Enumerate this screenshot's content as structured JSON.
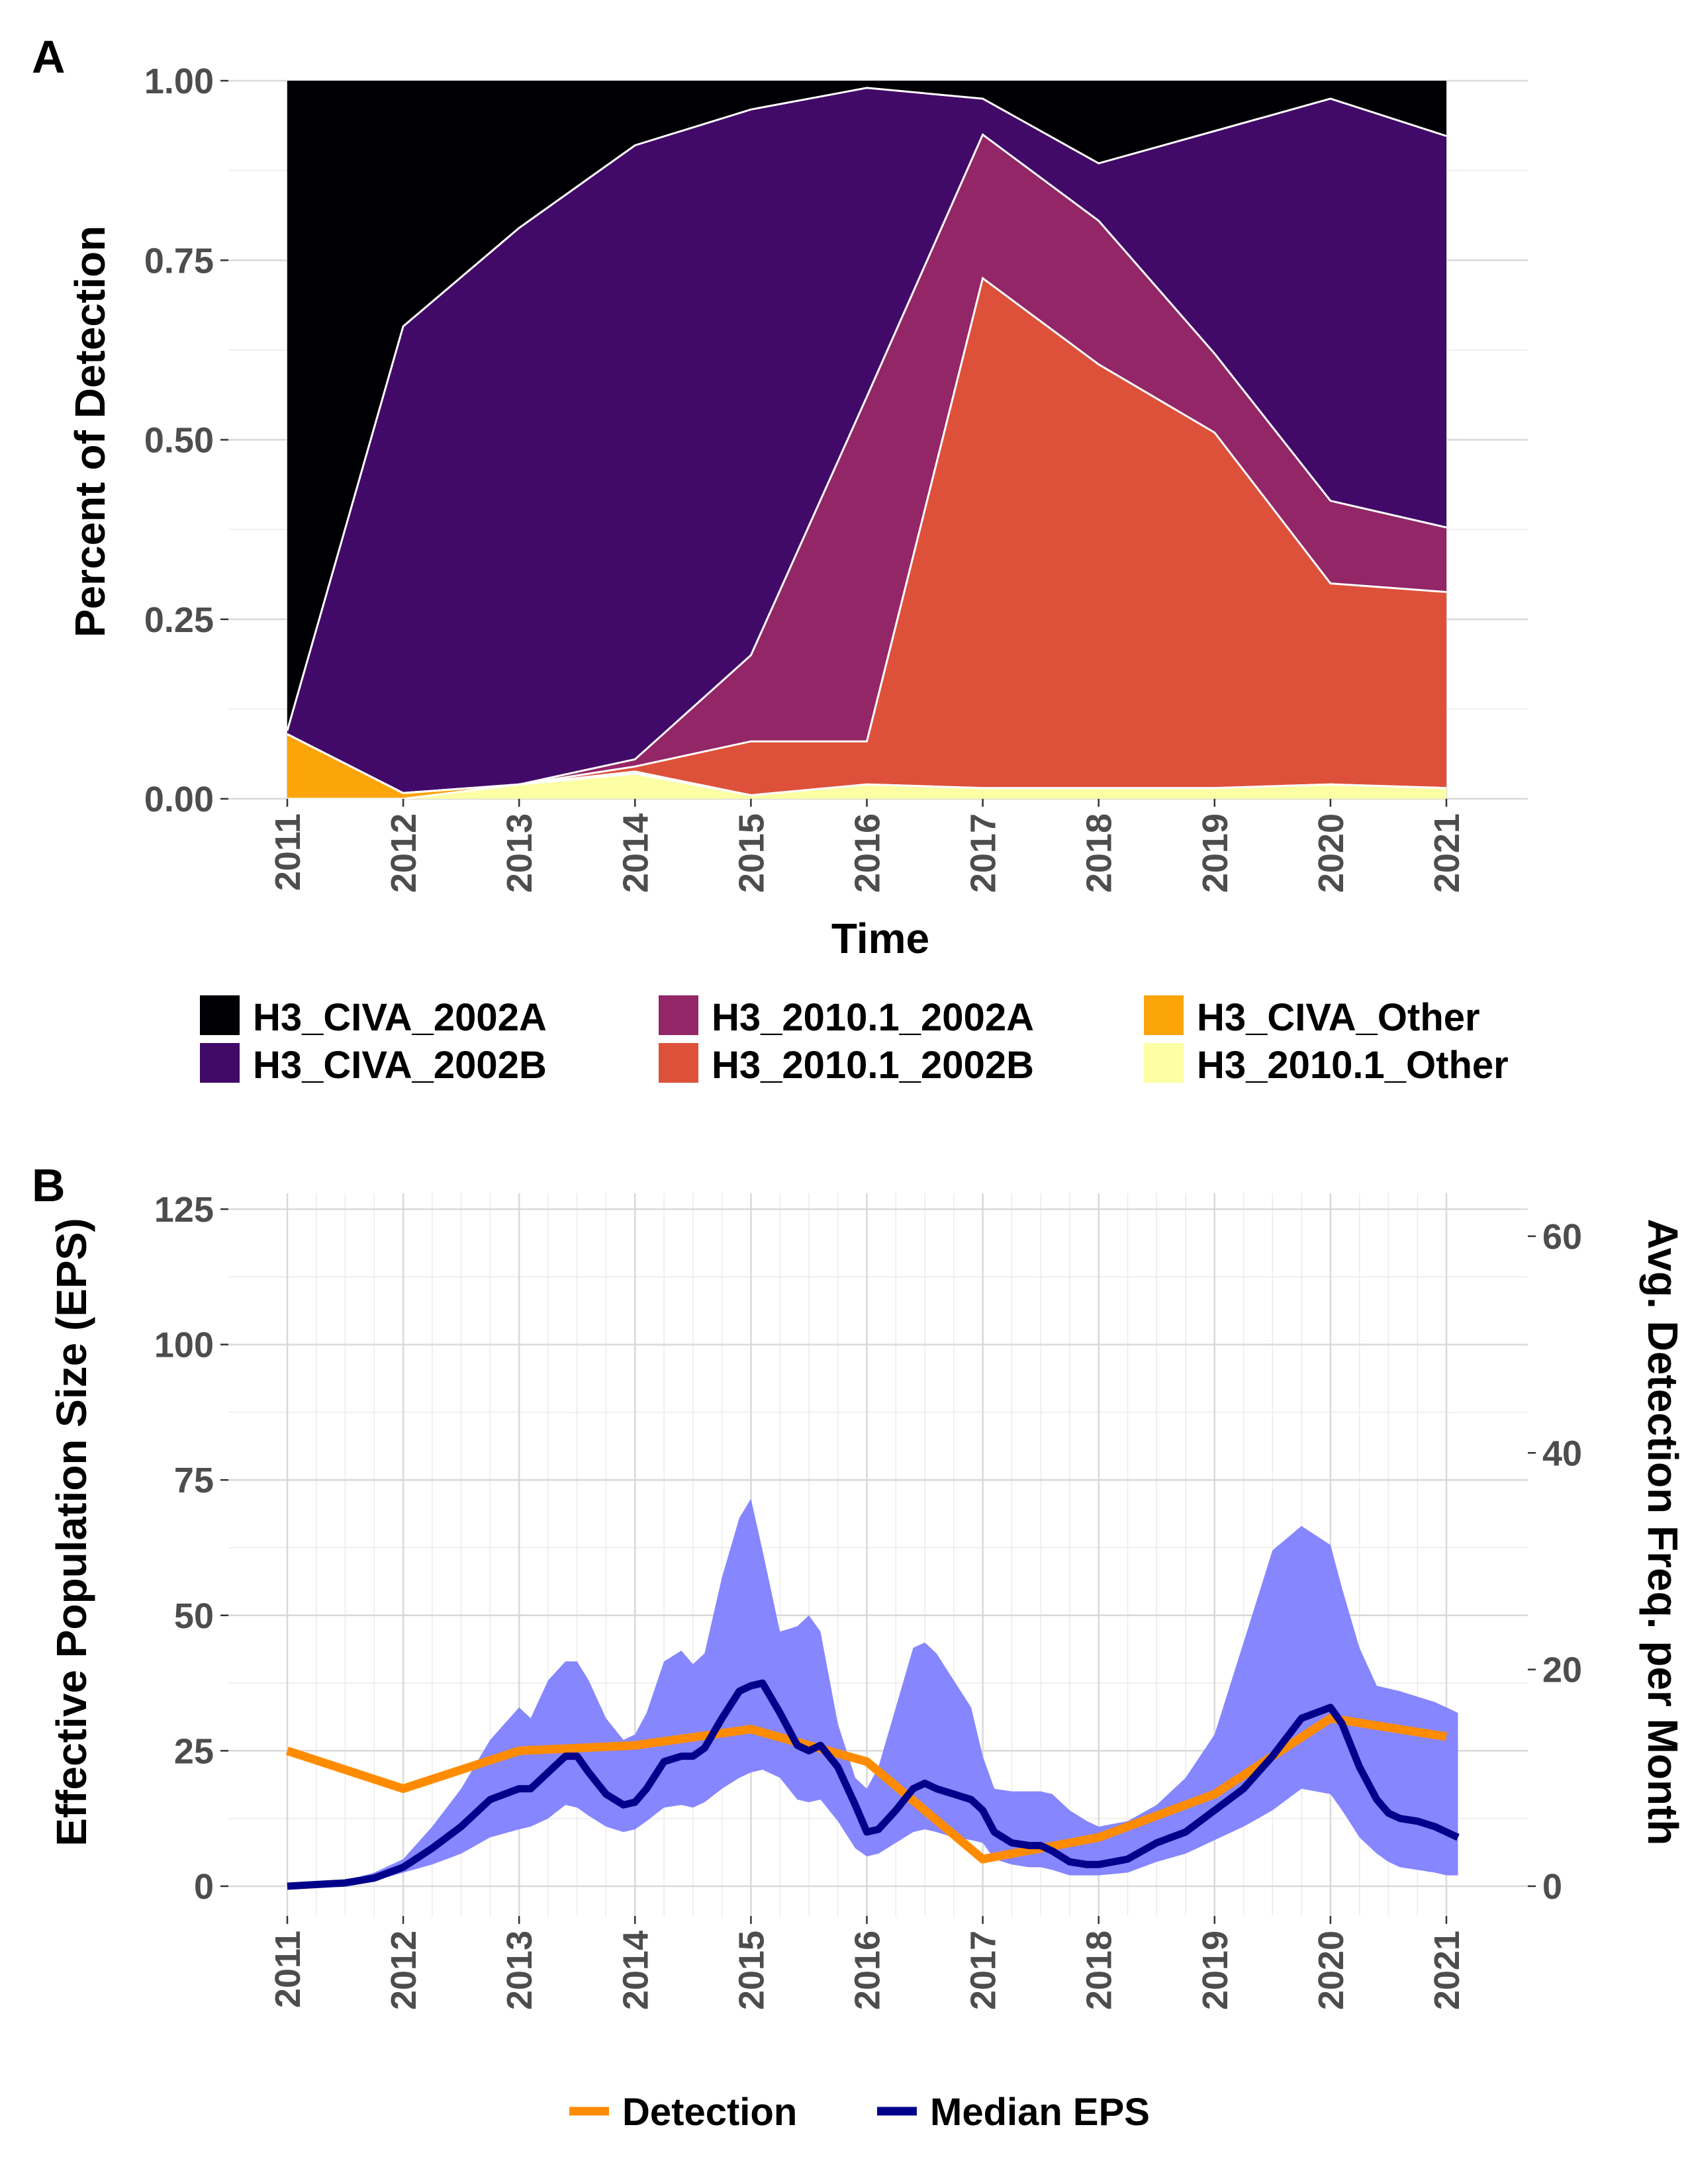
{
  "chart_data": [
    {
      "panel": "A",
      "type": "area",
      "stacked": true,
      "xlabel": "Time",
      "ylabel": "Percent of Detection",
      "xlim": [
        2011,
        2021
      ],
      "ylim": [
        0,
        1
      ],
      "x": [
        2011,
        2012,
        2013,
        2014,
        2015,
        2016,
        2017,
        2018,
        2019,
        2020,
        2021
      ],
      "x_ticks": [
        "2011",
        "2012",
        "2013",
        "2014",
        "2015",
        "2016",
        "2017",
        "2018",
        "2019",
        "2020",
        "2021"
      ],
      "y_ticks": [
        "0.00",
        "0.25",
        "0.50",
        "0.75",
        "1.00"
      ],
      "y_tick_values": [
        0,
        0.25,
        0.5,
        0.75,
        1.0
      ],
      "grid": true,
      "legend_position": "bottom",
      "series": [
        {
          "name": "H3_2010.1_Other",
          "color": "#FCFFA4",
          "values": [
            0.0,
            0.0,
            0.02,
            0.035,
            0.005,
            0.02,
            0.015,
            0.015,
            0.015,
            0.02,
            0.015
          ]
        },
        {
          "name": "H3_CIVA_Other",
          "color": "#FCA50A",
          "values": [
            0.09,
            0.008,
            0.0,
            0.003,
            0.0,
            0.0,
            0.0,
            0.0,
            0.0,
            0.0,
            0.0
          ]
        },
        {
          "name": "H3_2010.1_2002B",
          "color": "#DD513A",
          "values": [
            0.0,
            0.0,
            0.0,
            0.007,
            0.075,
            0.06,
            0.71,
            0.59,
            0.495,
            0.28,
            0.273
          ]
        },
        {
          "name": "H3_2010.1_2002A",
          "color": "#932667",
          "values": [
            0.0,
            0.0,
            0.0,
            0.01,
            0.12,
            0.48,
            0.2,
            0.2,
            0.11,
            0.115,
            0.09
          ]
        },
        {
          "name": "H3_CIVA_2002B",
          "color": "#420A68",
          "values": [
            0.005,
            0.65,
            0.775,
            0.855,
            0.76,
            0.43,
            0.05,
            0.08,
            0.31,
            0.56,
            0.545
          ]
        },
        {
          "name": "H3_CIVA_2002A",
          "color": "#000004",
          "values": [
            0.905,
            0.342,
            0.205,
            0.09,
            0.04,
            0.01,
            0.025,
            0.115,
            0.07,
            0.025,
            0.077
          ]
        }
      ],
      "legend": [
        {
          "label": "H3_CIVA_2002A",
          "color": "#000004"
        },
        {
          "label": "H3_CIVA_2002B",
          "color": "#420A68"
        },
        {
          "label": "H3_2010.1_2002A",
          "color": "#932667"
        },
        {
          "label": "H3_2010.1_2002B",
          "color": "#DD513A"
        },
        {
          "label": "H3_CIVA_Other",
          "color": "#FCA50A"
        },
        {
          "label": "H3_2010.1_Other",
          "color": "#FCFFA4"
        }
      ]
    },
    {
      "panel": "B",
      "type": "line",
      "xlabel": "",
      "ylabel": "Effective Population Size (EPS)",
      "ylabel_right": "Avg. Detection Freq. per Month",
      "xlim": [
        2011,
        2021
      ],
      "ylim": [
        0,
        125
      ],
      "ylim_right": [
        0,
        62.5
      ],
      "x_ticks": [
        "2011",
        "2012",
        "2013",
        "2014",
        "2015",
        "2016",
        "2017",
        "2018",
        "2019",
        "2020",
        "2021"
      ],
      "y_ticks": [
        "0",
        "25",
        "50",
        "75",
        "100",
        "125"
      ],
      "y_tick_values": [
        0,
        25,
        50,
        75,
        100,
        125
      ],
      "y_ticks_right": [
        "0",
        "20",
        "40",
        "60"
      ],
      "y_tick_values_right": [
        0,
        20,
        40,
        60
      ],
      "grid": true,
      "legend_position": "bottom",
      "eps": {
        "x": [
          2011.0,
          2011.25,
          2011.5,
          2011.75,
          2012.0,
          2012.25,
          2012.5,
          2012.75,
          2013.0,
          2013.1,
          2013.25,
          2013.4,
          2013.5,
          2013.6,
          2013.75,
          2013.9,
          2014.0,
          2014.1,
          2014.25,
          2014.4,
          2014.5,
          2014.6,
          2014.75,
          2014.9,
          2015.0,
          2015.1,
          2015.25,
          2015.4,
          2015.5,
          2015.6,
          2015.75,
          2015.9,
          2016.0,
          2016.1,
          2016.25,
          2016.4,
          2016.5,
          2016.6,
          2016.75,
          2016.9,
          2017.0,
          2017.1,
          2017.25,
          2017.4,
          2017.5,
          2017.6,
          2017.75,
          2017.9,
          2018.0,
          2018.25,
          2018.5,
          2018.75,
          2019.0,
          2019.25,
          2019.5,
          2019.75,
          2020.0,
          2020.1,
          2020.25,
          2020.4,
          2020.5,
          2020.6,
          2020.75,
          2020.9,
          2021.0,
          2021.1
        ],
        "median": [
          0.0,
          0.3,
          0.6,
          1.5,
          3.5,
          7.0,
          11.0,
          16.0,
          18.0,
          18.0,
          21.0,
          24.0,
          24.0,
          21.0,
          17.0,
          15.0,
          15.5,
          18.0,
          23.0,
          24.0,
          24.0,
          25.5,
          31.0,
          36.0,
          37.0,
          37.5,
          32.0,
          26.0,
          25.0,
          26.0,
          22.0,
          15.0,
          10.0,
          10.5,
          14.0,
          18.0,
          19.0,
          18.0,
          17.0,
          16.0,
          14.0,
          10.0,
          8.0,
          7.5,
          7.5,
          6.5,
          4.5,
          4.0,
          4.0,
          5.0,
          8.0,
          10.0,
          14.0,
          18.0,
          24.0,
          31.0,
          33.0,
          30.0,
          22.0,
          16.0,
          13.5,
          12.5,
          12.0,
          11.0,
          10.0,
          9.0
        ],
        "lower": [
          0.0,
          0.2,
          0.4,
          1.0,
          2.5,
          4.0,
          6.0,
          9.0,
          10.5,
          11.0,
          12.5,
          15.0,
          14.5,
          13.0,
          11.0,
          10.0,
          10.5,
          12.0,
          14.5,
          15.0,
          14.5,
          15.5,
          18.0,
          20.0,
          21.0,
          21.5,
          20.0,
          16.0,
          15.5,
          16.0,
          12.0,
          7.0,
          5.5,
          6.0,
          8.0,
          10.0,
          10.5,
          10.0,
          9.0,
          8.5,
          8.0,
          5.0,
          4.0,
          3.5,
          3.5,
          3.0,
          2.0,
          2.0,
          2.0,
          2.5,
          4.5,
          6.0,
          8.5,
          11.0,
          14.0,
          18.0,
          17.0,
          14.0,
          9.0,
          6.0,
          4.5,
          3.5,
          3.0,
          2.5,
          2.0,
          2.0
        ],
        "upper": [
          0.0,
          0.5,
          1.0,
          2.5,
          5.0,
          11.0,
          18.0,
          27.0,
          33.0,
          31.0,
          38.0,
          41.5,
          41.5,
          38.0,
          31.0,
          27.0,
          28.0,
          32.0,
          41.5,
          43.5,
          41.0,
          43.0,
          57.0,
          68.0,
          71.5,
          62.0,
          47.0,
          48.0,
          50.0,
          47.0,
          30.0,
          20.0,
          18.0,
          22.0,
          33.0,
          44.0,
          45.0,
          43.0,
          38.0,
          33.0,
          24.0,
          18.0,
          17.5,
          17.5,
          17.5,
          17.0,
          14.0,
          12.0,
          11.0,
          12.0,
          15.0,
          20.0,
          28.0,
          45.0,
          62.0,
          66.5,
          63.0,
          55.0,
          44.0,
          37.0,
          36.5,
          36.0,
          35.0,
          34.0,
          33.0,
          32.0
        ]
      },
      "series": [
        {
          "name": "Detection",
          "color": "#FF8C00",
          "axis": "right",
          "x": [
            2011,
            2012,
            2013,
            2014,
            2015,
            2016,
            2017,
            2018,
            2019,
            2020,
            2021
          ],
          "values": [
            12.5,
            9.0,
            12.5,
            13.0,
            14.5,
            11.5,
            2.5,
            4.5,
            8.5,
            15.5,
            13.8
          ]
        },
        {
          "name": "Median EPS",
          "color": "#00008B",
          "axis": "left"
        }
      ],
      "band_color": "#8080FF",
      "legend": [
        {
          "label": "Detection",
          "color": "#FF8C00"
        },
        {
          "label": "Median EPS",
          "color": "#00008B"
        }
      ]
    }
  ],
  "panel_labels": {
    "a": "A",
    "b": "B"
  }
}
